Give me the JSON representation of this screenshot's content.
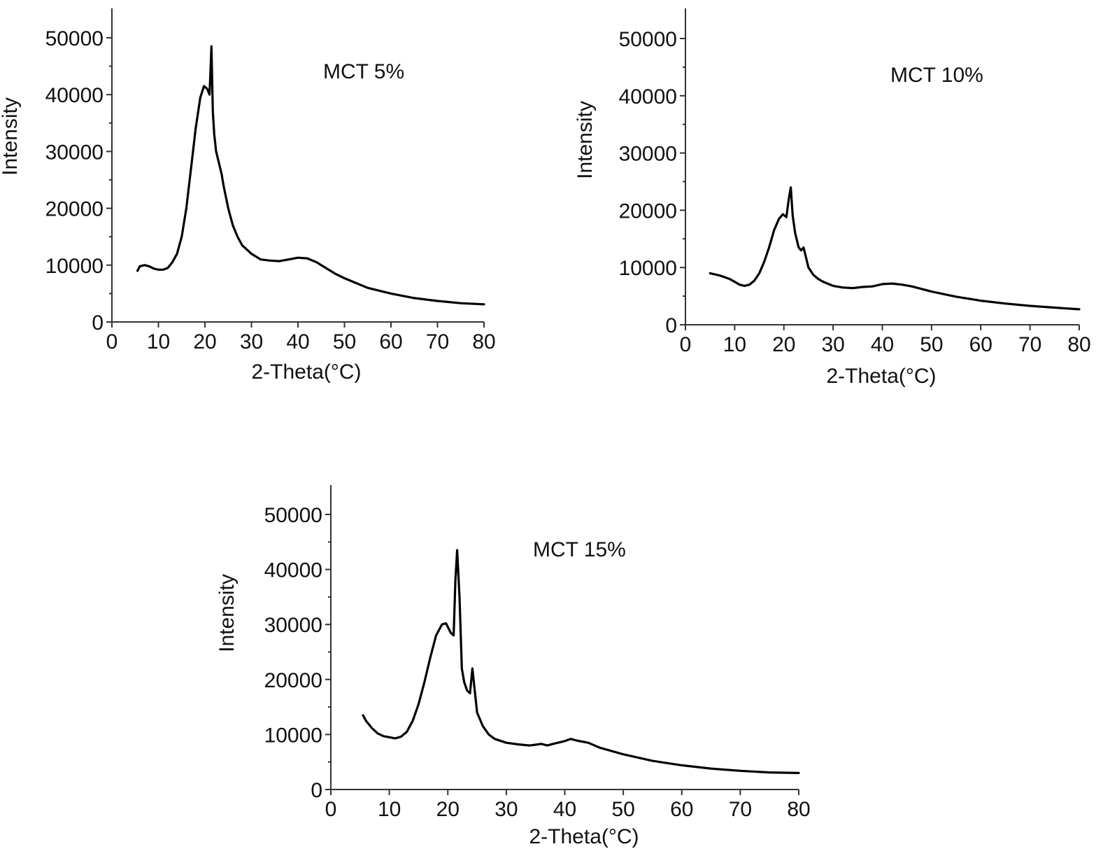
{
  "chart_data": [
    {
      "type": "line",
      "title": "MCT 5%",
      "xlabel": "2-Theta(°C)",
      "ylabel": "Intensity",
      "xlim": [
        0,
        80
      ],
      "ylim": [
        0,
        55000
      ],
      "xticks": [
        0,
        10,
        20,
        30,
        40,
        50,
        60,
        70,
        80
      ],
      "yticks": [
        0,
        10000,
        20000,
        30000,
        40000,
        50000
      ],
      "grid": false,
      "series": [
        {
          "x": [
            5.5,
            6,
            7,
            8,
            9,
            10,
            11,
            12,
            13,
            14,
            15,
            16,
            17,
            18,
            19,
            19.8,
            20.5,
            21,
            21.4,
            21.7,
            22,
            22.4,
            23,
            23.6,
            24,
            25,
            26,
            27,
            28,
            30,
            32,
            34,
            36,
            38,
            40,
            42,
            44,
            46,
            48,
            50,
            55,
            60,
            65,
            70,
            75,
            80
          ],
          "y": [
            9000,
            9800,
            10000,
            9800,
            9400,
            9200,
            9200,
            9500,
            10500,
            12000,
            15000,
            20000,
            27000,
            34000,
            39500,
            41500,
            41000,
            40000,
            48500,
            37000,
            33000,
            30000,
            28000,
            26000,
            24000,
            20000,
            17000,
            15000,
            13500,
            12000,
            11000,
            10800,
            10700,
            11000,
            11300,
            11200,
            10500,
            9500,
            8500,
            7700,
            6000,
            5000,
            4200,
            3700,
            3300,
            3100
          ]
        }
      ]
    },
    {
      "type": "line",
      "title": "MCT 10%",
      "xlabel": "2-Theta(°C)",
      "ylabel": "Intensity",
      "xlim": [
        0,
        80
      ],
      "ylim": [
        0,
        55000
      ],
      "xticks": [
        0,
        10,
        20,
        30,
        40,
        50,
        60,
        70,
        80
      ],
      "yticks": [
        0,
        10000,
        20000,
        30000,
        40000,
        50000
      ],
      "grid": false,
      "series": [
        {
          "x": [
            5,
            6,
            7,
            8,
            9,
            10,
            11,
            12,
            13,
            14,
            15,
            16,
            17,
            18,
            19,
            19.8,
            20.5,
            21,
            21.4,
            21.8,
            22.3,
            23,
            23.5,
            24,
            25,
            26,
            27,
            28,
            30,
            32,
            34,
            36,
            38,
            40,
            42,
            44,
            46,
            50,
            55,
            60,
            65,
            70,
            75,
            80
          ],
          "y": [
            9000,
            8800,
            8600,
            8300,
            8000,
            7500,
            7000,
            6800,
            7000,
            7700,
            9000,
            11000,
            13500,
            16500,
            18500,
            19300,
            18800,
            22000,
            24000,
            19000,
            16000,
            13500,
            13000,
            13500,
            10000,
            8700,
            8000,
            7500,
            6800,
            6500,
            6400,
            6600,
            6700,
            7100,
            7200,
            7000,
            6700,
            5800,
            4900,
            4200,
            3700,
            3300,
            3000,
            2700
          ]
        }
      ]
    },
    {
      "type": "line",
      "title": "MCT 15%",
      "xlabel": "2-Theta(°C)",
      "ylabel": "Intensity",
      "xlim": [
        0,
        80
      ],
      "ylim": [
        0,
        55000
      ],
      "xticks": [
        0,
        10,
        20,
        30,
        40,
        50,
        60,
        70,
        80
      ],
      "yticks": [
        0,
        10000,
        20000,
        30000,
        40000,
        50000
      ],
      "grid": false,
      "series": [
        {
          "x": [
            5.5,
            6,
            7,
            8,
            9,
            10,
            11,
            12,
            13,
            14,
            15,
            16,
            17,
            18,
            19,
            19.7,
            20.5,
            21,
            21.3,
            21.6,
            22,
            22.4,
            22.8,
            23.3,
            23.8,
            24.2,
            25,
            26,
            27,
            28,
            30,
            32,
            34,
            36,
            37,
            38,
            40,
            41,
            42,
            44,
            46,
            50,
            55,
            60,
            65,
            70,
            75,
            80
          ],
          "y": [
            13500,
            12500,
            11200,
            10200,
            9700,
            9500,
            9300,
            9600,
            10500,
            12500,
            15500,
            19500,
            24000,
            28000,
            30000,
            30200,
            28500,
            28000,
            38000,
            43500,
            35000,
            22000,
            19500,
            18000,
            17500,
            22000,
            14000,
            11500,
            10000,
            9200,
            8500,
            8200,
            8000,
            8300,
            8000,
            8300,
            8800,
            9200,
            8900,
            8500,
            7600,
            6400,
            5200,
            4400,
            3800,
            3400,
            3100,
            3000
          ]
        }
      ]
    }
  ]
}
